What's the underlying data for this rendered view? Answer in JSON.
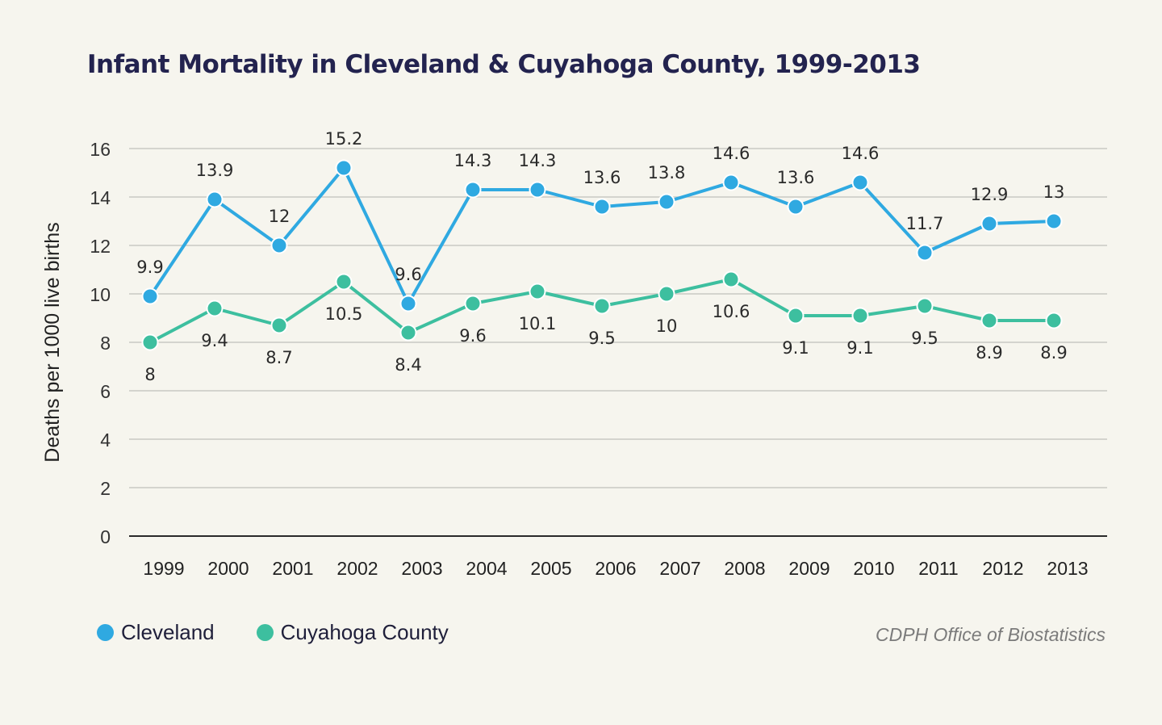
{
  "chart_data": {
    "type": "line",
    "title": "Infant Mortality in Cleveland & Cuyahoga County, 1999-2013",
    "xlabel": "",
    "ylabel": "Deaths per 1000 live births",
    "categories": [
      "1999",
      "2000",
      "2001",
      "2002",
      "2003",
      "2004",
      "2005",
      "2006",
      "2007",
      "2008",
      "2009",
      "2010",
      "2011",
      "2012",
      "2013"
    ],
    "ylim": [
      0,
      16
    ],
    "yticks": [
      0,
      2,
      4,
      6,
      8,
      10,
      12,
      14,
      16
    ],
    "grid": true,
    "legend_position": "bottom-left",
    "series": [
      {
        "name": "Cleveland",
        "color": "#2fa9e1",
        "values": [
          9.9,
          13.9,
          12,
          15.2,
          9.6,
          14.3,
          14.3,
          13.6,
          13.8,
          14.6,
          13.6,
          14.6,
          11.7,
          12.9,
          13
        ],
        "labels": [
          "9.9",
          "13.9",
          "12",
          "15.2",
          "9.6",
          "14.3",
          "14.3",
          "13.6",
          "13.8",
          "14.6",
          "13.6",
          "14.6",
          "11.7",
          "12.9",
          "13"
        ],
        "label_side": [
          "above",
          "above",
          "above",
          "above",
          "above",
          "above",
          "above",
          "above",
          "above",
          "above",
          "above",
          "above",
          "above",
          "above",
          "above"
        ]
      },
      {
        "name": "Cuyahoga County",
        "color": "#3dbf9f",
        "values": [
          8,
          9.4,
          8.7,
          10.5,
          8.4,
          9.6,
          10.1,
          9.5,
          10,
          10.6,
          9.1,
          9.1,
          9.5,
          8.9,
          8.9
        ],
        "labels": [
          "8",
          "9.4",
          "8.7",
          "10.5",
          "8.4",
          "9.6",
          "10.1",
          "9.5",
          "10",
          "10.6",
          "9.1",
          "9.1",
          "9.5",
          "8.9",
          "8.9"
        ],
        "label_side": [
          "below",
          "below",
          "below",
          "below",
          "below",
          "below",
          "below",
          "below",
          "below",
          "below",
          "below",
          "below",
          "below",
          "below",
          "below"
        ]
      }
    ]
  },
  "source": "CDPH Office of Biostatistics"
}
